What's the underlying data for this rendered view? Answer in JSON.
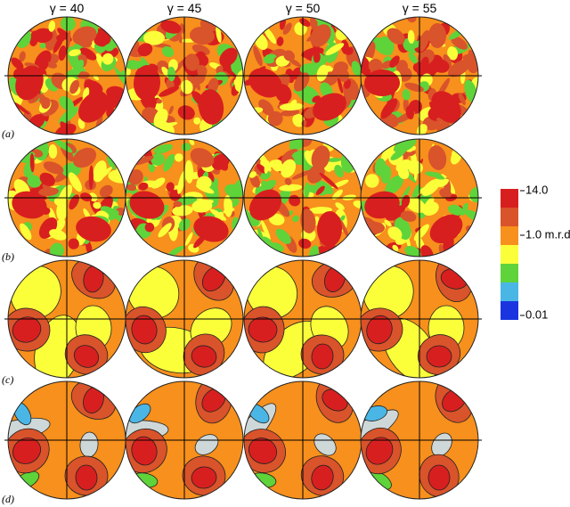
{
  "columns": [
    "γ = 40",
    "γ = 45",
    "γ = 50",
    "γ = 55"
  ],
  "rows": [
    "(a)",
    "(b)",
    "(c)",
    "(d)"
  ],
  "colorbar": {
    "labels": [
      "14.0",
      "1.0 m.r.d.",
      "0.01"
    ]
  }
}
